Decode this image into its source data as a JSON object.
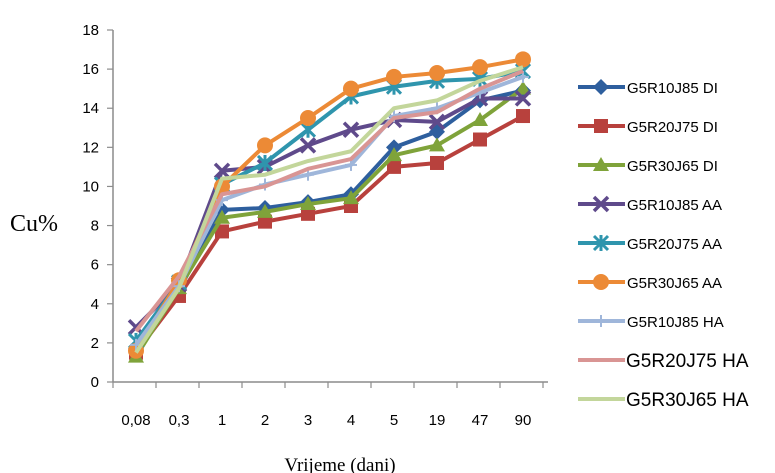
{
  "chart_data": {
    "type": "line",
    "title": "",
    "xlabel": "Vrijeme (dani)",
    "ylabel": "Cu%",
    "ylim": [
      0,
      18
    ],
    "ytick_step": 2,
    "grid": false,
    "legend_position": "right",
    "categories": [
      "0,08",
      "0,3",
      "1",
      "2",
      "3",
      "4",
      "5",
      "19",
      "47",
      "90"
    ],
    "series": [
      {
        "name": "G5R10J85 DI",
        "color": "#2e5f9e",
        "marker": "diamond",
        "values": [
          1.7,
          4.7,
          8.8,
          8.9,
          9.2,
          9.6,
          12.0,
          12.8,
          14.4,
          14.9
        ]
      },
      {
        "name": "G5R20J75 DI",
        "color": "#b8413d",
        "marker": "square",
        "values": [
          1.5,
          4.4,
          7.7,
          8.2,
          8.6,
          9.0,
          11.0,
          11.2,
          12.4,
          13.6
        ]
      },
      {
        "name": "G5R30J65 DI",
        "color": "#7fa33a",
        "marker": "triangle",
        "values": [
          1.3,
          4.8,
          8.4,
          8.7,
          9.1,
          9.4,
          11.6,
          12.1,
          13.4,
          15.0
        ]
      },
      {
        "name": "G5R10J85 AA",
        "color": "#5f4a8b",
        "marker": "x",
        "values": [
          2.8,
          5.0,
          10.8,
          11.0,
          12.1,
          12.9,
          13.4,
          13.3,
          14.5,
          14.5
        ]
      },
      {
        "name": "G5R20J75 AA",
        "color": "#2f95ad",
        "marker": "star",
        "values": [
          2.1,
          5.1,
          10.1,
          11.2,
          12.9,
          14.6,
          15.1,
          15.4,
          15.5,
          15.9
        ]
      },
      {
        "name": "G5R30J65 AA",
        "color": "#ec8a36",
        "marker": "circle",
        "values": [
          1.6,
          5.2,
          10.0,
          12.1,
          13.5,
          15.0,
          15.6,
          15.8,
          16.1,
          16.5
        ]
      },
      {
        "name": "G5R10J85 HA",
        "color": "#9fb6da",
        "marker": "plus",
        "values": [
          1.9,
          4.9,
          9.3,
          10.1,
          10.6,
          11.1,
          13.6,
          14.0,
          14.8,
          15.6
        ]
      },
      {
        "name": "G5R20J75 HA",
        "color": "#d99594",
        "marker": "none",
        "values": [
          2.6,
          5.4,
          9.6,
          10.0,
          10.9,
          11.4,
          13.5,
          13.8,
          15.0,
          15.9
        ]
      },
      {
        "name": "G5R30J65 HA",
        "color": "#c3d69b",
        "marker": "none",
        "values": [
          1.5,
          4.8,
          10.4,
          10.6,
          11.3,
          11.8,
          14.0,
          14.4,
          15.4,
          16.1
        ]
      }
    ]
  }
}
